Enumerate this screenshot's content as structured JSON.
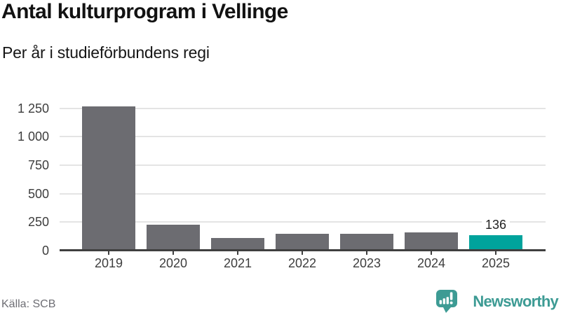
{
  "header": {
    "title": "Antal kulturprogram i Vellinge",
    "subtitle": "Per år i studieförbundens regi"
  },
  "chart_data": {
    "type": "bar",
    "title": "Antal kulturprogram i Vellinge",
    "subtitle": "Per år i studieförbundens regi",
    "categories": [
      "2019",
      "2020",
      "2021",
      "2022",
      "2023",
      "2024",
      "2025"
    ],
    "values": [
      1266,
      229,
      108,
      146,
      145,
      162,
      136
    ],
    "highlight_index": 6,
    "highlight_value_label": "136",
    "yticks": [
      0,
      250,
      500,
      750,
      1000,
      1250
    ],
    "ytick_labels": [
      "0",
      "250",
      "500",
      "750",
      "1 000",
      "1 250"
    ],
    "ylim": [
      0,
      1309
    ],
    "xlabel": "",
    "ylabel": "",
    "grid": true,
    "legend": false,
    "bar_color": "#6c6c71",
    "highlight_color": "#00a39c"
  },
  "footer": {
    "source": "Källa: SCB",
    "brand": "Newsworthy",
    "brand_color": "#3d9b94",
    "logo_icon": "bar-chart-speech-bubble"
  }
}
